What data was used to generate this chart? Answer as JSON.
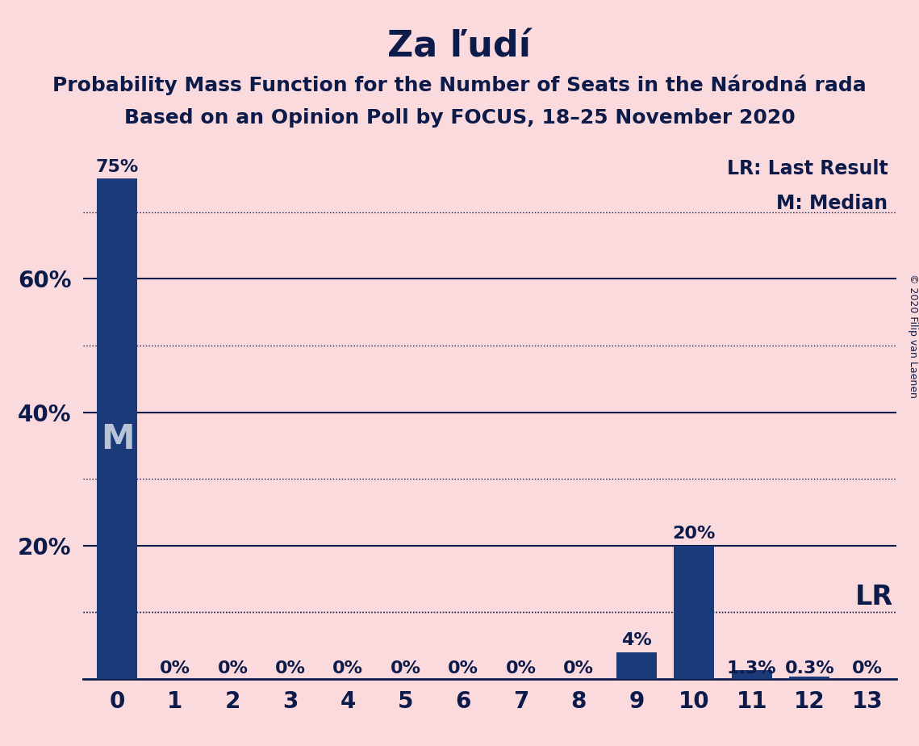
{
  "title": "Za ľudí",
  "subtitle1": "Probability Mass Function for the Number of Seats in the Národná rada",
  "subtitle2": "Based on an Opinion Poll by FOCUS, 18–25 November 2020",
  "copyright": "© 2020 Filip van Laenen",
  "categories": [
    0,
    1,
    2,
    3,
    4,
    5,
    6,
    7,
    8,
    9,
    10,
    11,
    12,
    13
  ],
  "values": [
    0.75,
    0.0,
    0.0,
    0.0,
    0.0,
    0.0,
    0.0,
    0.0,
    0.0,
    0.04,
    0.2,
    0.013,
    0.003,
    0.0
  ],
  "bar_color": "#1a3a7a",
  "background_color": "#fadadd",
  "text_color": "#0d1b4b",
  "ylabel_ticks": [
    0.2,
    0.4,
    0.6
  ],
  "ylabel_labels": [
    "20%",
    "40%",
    "60%"
  ],
  "ylim": [
    0,
    0.8
  ],
  "median_seat": 0,
  "lr_value": 0.1,
  "bar_labels": [
    "75%",
    "0%",
    "0%",
    "0%",
    "0%",
    "0%",
    "0%",
    "0%",
    "0%",
    "4%",
    "20%",
    "1.3%",
    "0.3%",
    "0%"
  ],
  "solid_gridlines": [
    0.2,
    0.4,
    0.6
  ],
  "dotted_gridlines": [
    0.1,
    0.3,
    0.5,
    0.7
  ],
  "title_fontsize": 32,
  "subtitle_fontsize": 18,
  "label_fontsize": 16,
  "tick_fontsize": 20
}
